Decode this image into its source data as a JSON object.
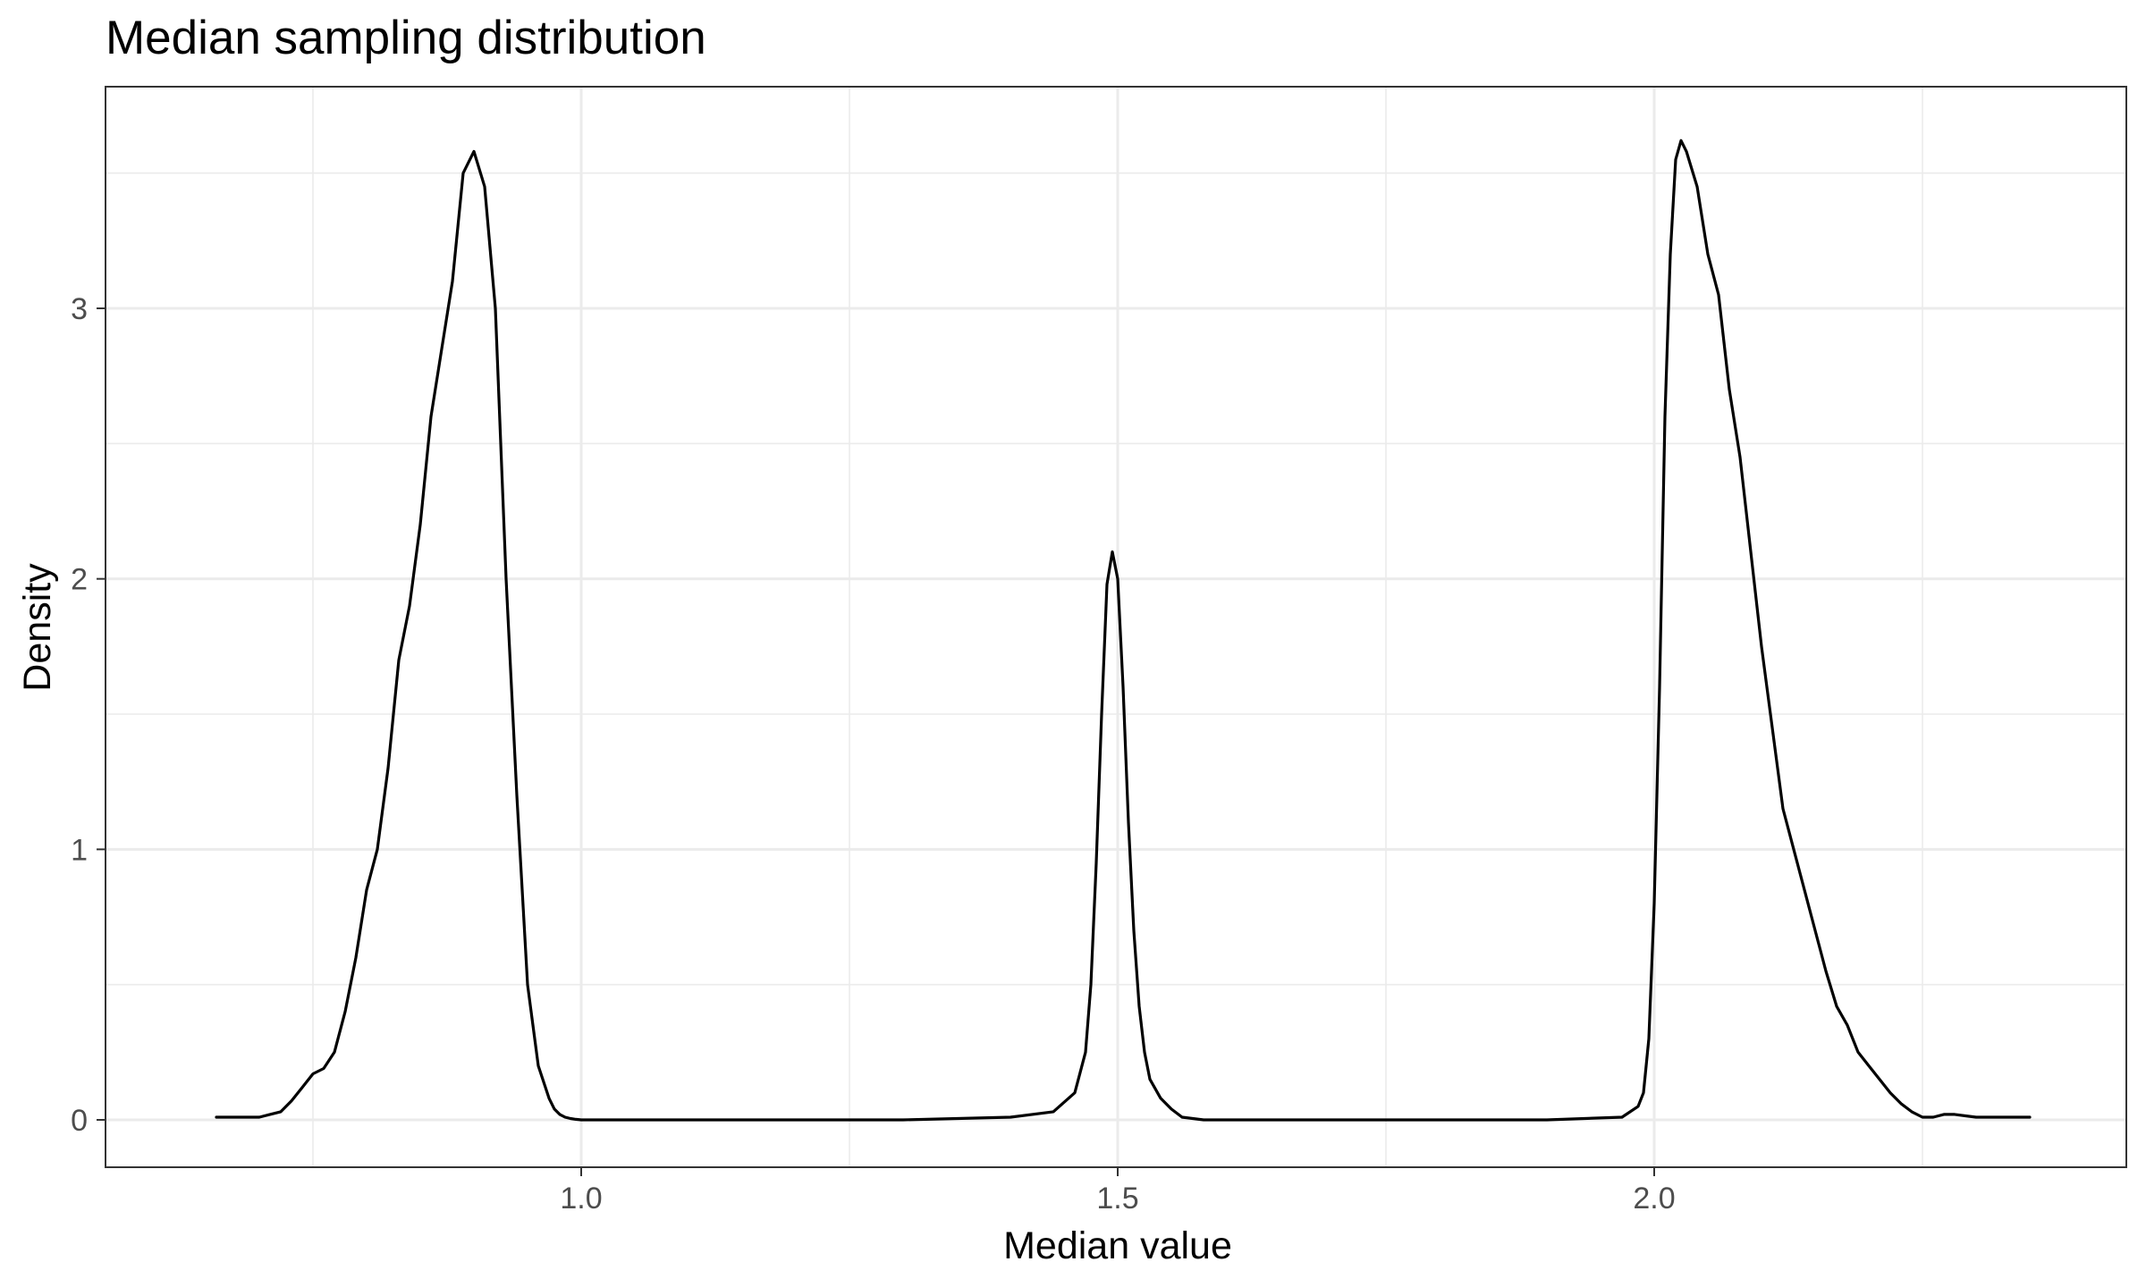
{
  "chart_data": {
    "type": "line",
    "title": "Median sampling distribution",
    "xlabel": "Median value",
    "ylabel": "Density",
    "xlim": [
      0.65,
      2.35
    ],
    "ylim": [
      0,
      3.6
    ],
    "x_ticks": [
      1.0,
      1.5,
      2.0
    ],
    "x_tick_labels": [
      "1.0",
      "1.5",
      "2.0"
    ],
    "y_ticks": [
      0,
      1,
      2,
      3
    ],
    "y_tick_labels": [
      "0",
      "1",
      "2",
      "3"
    ],
    "grid": true,
    "legend": "none",
    "line_color": "#000000",
    "series": [
      {
        "x": [
          0.66,
          0.68,
          0.7,
          0.71,
          0.72,
          0.73,
          0.74,
          0.75,
          0.76,
          0.77,
          0.78,
          0.79,
          0.8,
          0.81,
          0.82,
          0.83,
          0.84,
          0.85,
          0.86,
          0.87,
          0.88,
          0.89,
          0.9,
          0.91,
          0.92,
          0.93,
          0.94,
          0.95,
          0.96,
          0.97,
          0.975,
          0.98,
          0.985,
          0.99,
          0.995,
          1.0,
          1.005,
          1.01,
          1.02,
          1.05,
          1.1,
          1.2,
          1.3,
          1.4,
          1.44,
          1.46,
          1.47,
          1.475,
          1.48,
          1.485,
          1.49,
          1.495,
          1.5,
          1.505,
          1.51,
          1.515,
          1.52,
          1.525,
          1.53,
          1.54,
          1.55,
          1.56,
          1.58,
          1.62,
          1.7,
          1.8,
          1.9,
          1.97,
          1.985,
          1.99,
          1.995,
          2.0,
          2.005,
          2.01,
          2.015,
          2.02,
          2.025,
          2.03,
          2.04,
          2.05,
          2.06,
          2.07,
          2.08,
          2.09,
          2.1,
          2.11,
          2.12,
          2.13,
          2.14,
          2.15,
          2.16,
          2.17,
          2.18,
          2.19,
          2.2,
          2.21,
          2.22,
          2.23,
          2.24,
          2.25,
          2.26,
          2.27,
          2.28,
          2.29,
          2.3,
          2.31,
          2.33,
          2.35
        ],
        "y": [
          0.01,
          0.01,
          0.01,
          0.02,
          0.03,
          0.07,
          0.12,
          0.17,
          0.19,
          0.25,
          0.4,
          0.6,
          0.85,
          1.0,
          1.3,
          1.7,
          1.9,
          2.2,
          2.6,
          2.85,
          3.1,
          3.5,
          3.58,
          3.45,
          3.0,
          2.0,
          1.2,
          0.5,
          0.2,
          0.08,
          0.04,
          0.02,
          0.01,
          0.005,
          0.002,
          0.0,
          0.0,
          0.0,
          0.0,
          0.0,
          0.0,
          0.0,
          0.0,
          0.01,
          0.03,
          0.1,
          0.25,
          0.5,
          0.95,
          1.5,
          1.98,
          2.1,
          2.0,
          1.6,
          1.1,
          0.7,
          0.42,
          0.25,
          0.15,
          0.08,
          0.04,
          0.01,
          0.0,
          0.0,
          0.0,
          0.0,
          0.0,
          0.01,
          0.05,
          0.1,
          0.3,
          0.8,
          1.6,
          2.6,
          3.2,
          3.55,
          3.62,
          3.58,
          3.45,
          3.2,
          3.05,
          2.7,
          2.45,
          2.1,
          1.75,
          1.45,
          1.15,
          1.0,
          0.85,
          0.7,
          0.55,
          0.42,
          0.35,
          0.25,
          0.2,
          0.15,
          0.1,
          0.06,
          0.03,
          0.01,
          0.01,
          0.02,
          0.02,
          0.015,
          0.01,
          0.01,
          0.01,
          0.01
        ]
      }
    ]
  }
}
